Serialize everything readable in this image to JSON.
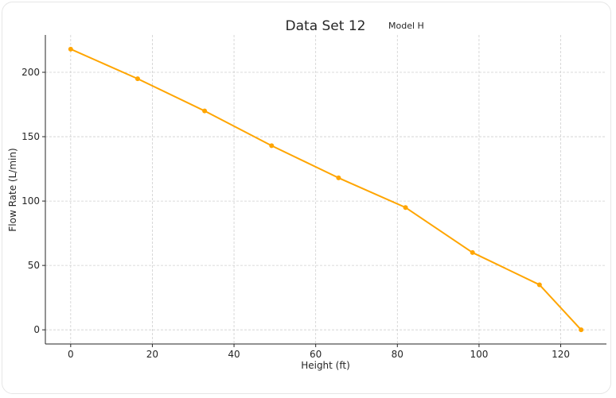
{
  "chart_data": {
    "type": "line",
    "title": "Data Set 12",
    "subtitle": "Model H",
    "xlabel": "Height (ft)",
    "ylabel": "Flow Rate (L/min)",
    "xlim": [
      -6.2,
      131.2
    ],
    "ylim": [
      -11,
      229
    ],
    "xticks": [
      0,
      20,
      40,
      60,
      80,
      100,
      120
    ],
    "yticks": [
      0,
      50,
      100,
      150,
      200
    ],
    "grid": true,
    "color": "#FFA500",
    "series": [
      {
        "x": [
          0,
          16.4,
          32.8,
          49.2,
          65.6,
          82,
          98.4,
          114.8,
          125
        ],
        "y": [
          218,
          195,
          170,
          143,
          118,
          95,
          60,
          35,
          0
        ]
      }
    ]
  }
}
